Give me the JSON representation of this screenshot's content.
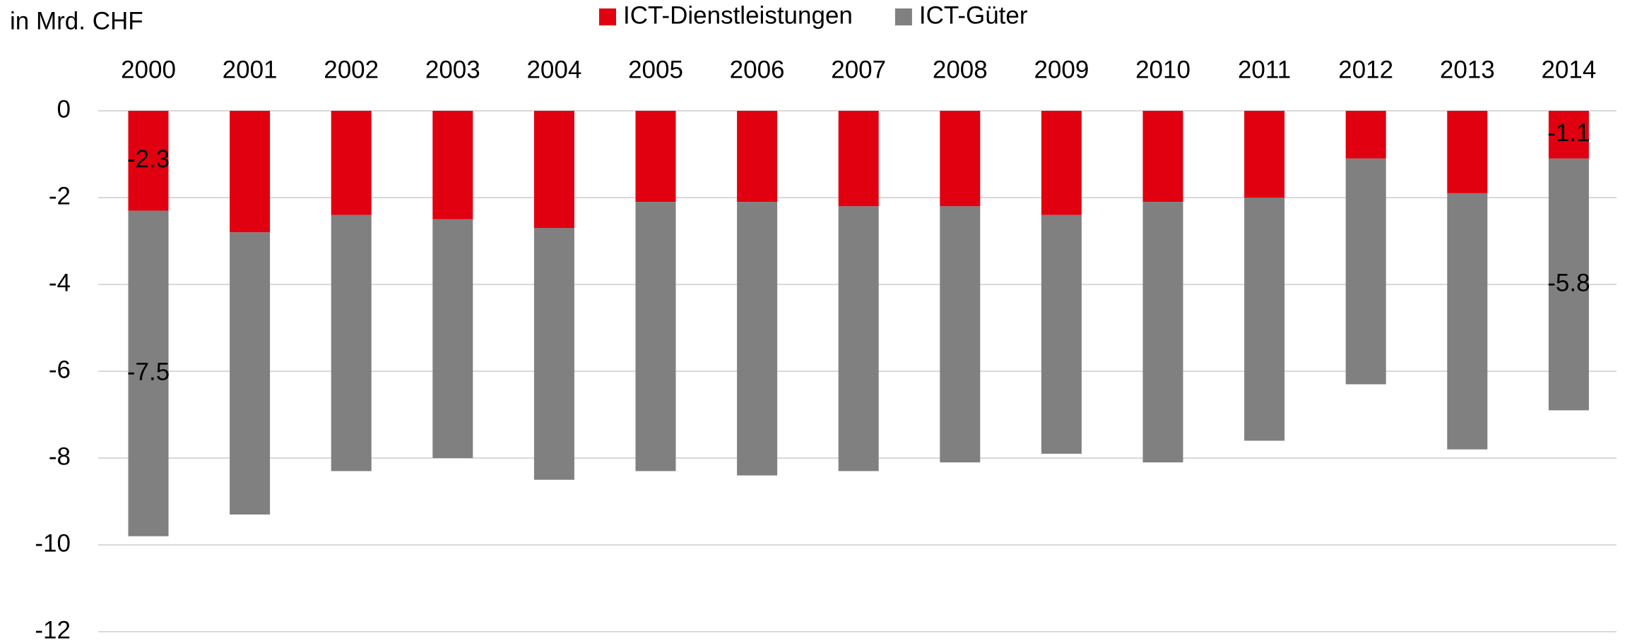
{
  "chart_data": {
    "type": "stacked-bar",
    "y_axis_label": "in Mrd. CHF",
    "categories": [
      "2000",
      "2001",
      "2002",
      "2003",
      "2004",
      "2005",
      "2006",
      "2007",
      "2008",
      "2009",
      "2010",
      "2011",
      "2012",
      "2013",
      "2014"
    ],
    "series": [
      {
        "name": "ICT-Dienstleistungen",
        "color": "#e0000f",
        "values": [
          -2.3,
          -2.8,
          -2.4,
          -2.5,
          -2.7,
          -2.1,
          -2.1,
          -2.2,
          -2.2,
          -2.4,
          -2.1,
          -2.0,
          -1.1,
          -1.9,
          -1.1
        ],
        "value_labels": [
          "-2.3",
          null,
          null,
          null,
          null,
          null,
          null,
          null,
          null,
          null,
          null,
          null,
          null,
          null,
          "-1.1"
        ]
      },
      {
        "name": "ICT-Güter",
        "color": "#808080",
        "values": [
          -7.5,
          -6.5,
          -5.9,
          -5.5,
          -5.8,
          -6.2,
          -6.3,
          -6.1,
          -5.9,
          -5.5,
          -6.0,
          -5.6,
          -5.2,
          -5.9,
          -5.8
        ],
        "value_labels": [
          "-7.5",
          null,
          null,
          null,
          null,
          null,
          null,
          null,
          null,
          null,
          null,
          null,
          null,
          null,
          "-5.8"
        ]
      }
    ],
    "ylim": [
      -12,
      0
    ],
    "yticks": [
      0,
      -2,
      -4,
      -6,
      -8,
      -10,
      -12
    ],
    "grid": true,
    "legend": "top"
  }
}
